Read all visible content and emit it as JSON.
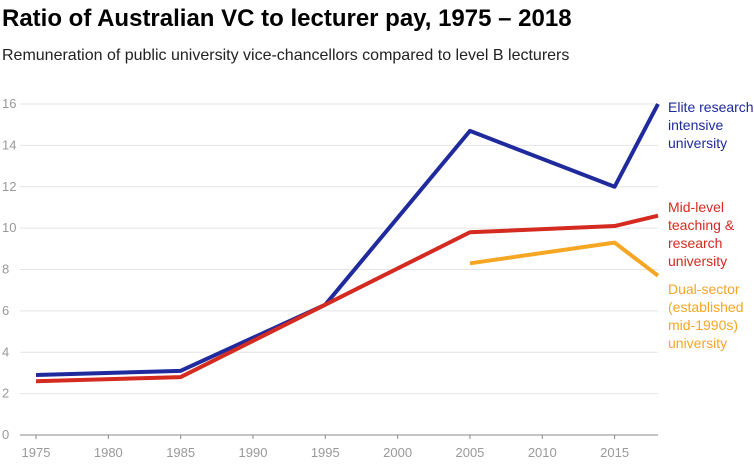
{
  "chart_data": {
    "type": "line",
    "title": "Ratio of Australian VC to lecturer pay, 1975 – 2018",
    "subtitle": "Remuneration of public university vice-chancellors compared to level B lecturers",
    "x": [
      1975,
      1985,
      1995,
      2005,
      2015,
      2018
    ],
    "series": [
      {
        "name": "Elite research-intensive university",
        "color": "#1f2a9c",
        "values": [
          2.9,
          3.1,
          6.3,
          14.7,
          12.0,
          16.0
        ]
      },
      {
        "name": "Mid-level teaching & research university",
        "color": "#d42a1f",
        "values": [
          2.6,
          2.8,
          6.3,
          9.8,
          10.1,
          10.6
        ]
      },
      {
        "name": "Dual-sector (established mid-1990s) university",
        "color": "#f5a623",
        "values": [
          null,
          null,
          null,
          8.3,
          9.3,
          7.7
        ]
      }
    ],
    "xlim": [
      1975,
      2018
    ],
    "xticks": [
      1975,
      1980,
      1985,
      1990,
      1995,
      2000,
      2005,
      2010,
      2015
    ],
    "ylim": [
      0,
      16
    ],
    "yticks": [
      0,
      2,
      4,
      6,
      8,
      10,
      12,
      14,
      16
    ],
    "grid": true
  }
}
